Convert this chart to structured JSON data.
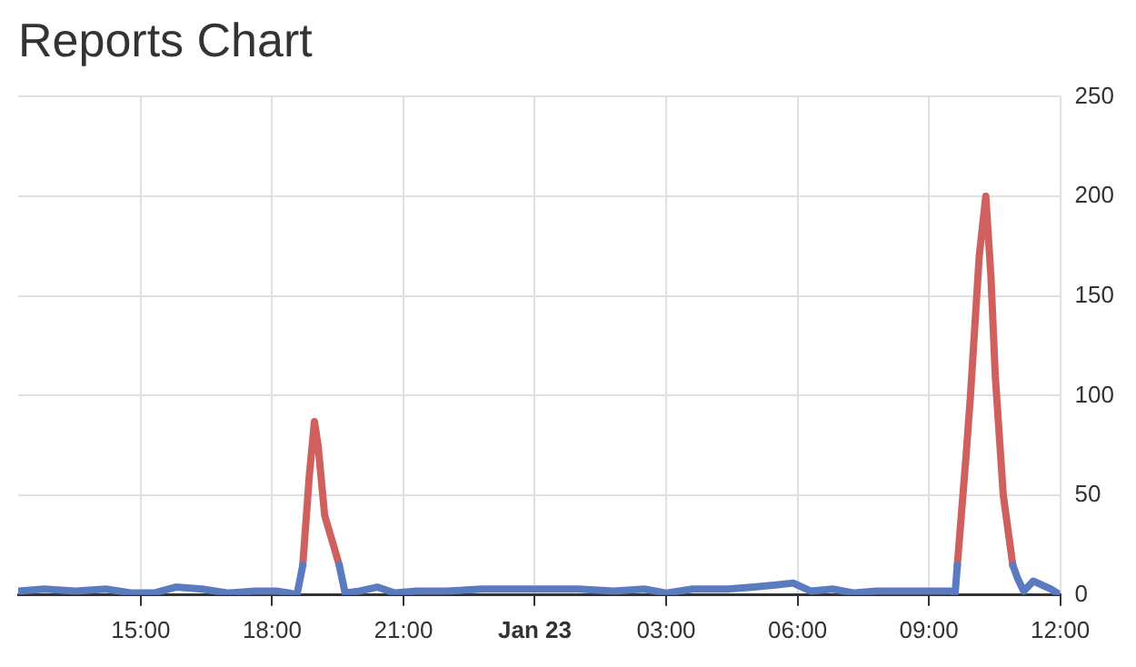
{
  "chart_data": {
    "type": "line",
    "title": "Reports Chart",
    "xlim": [
      "--01-22T12:12",
      "--01-23T12:00"
    ],
    "xticks": [
      {
        "value": "--01-22T15:00",
        "label": "15:00"
      },
      {
        "value": "--01-22T18:00",
        "label": "18:00"
      },
      {
        "value": "--01-22T21:00",
        "label": "21:00"
      },
      {
        "value": "--01-23T00:00",
        "label": "Jan 23"
      },
      {
        "value": "--01-23T03:00",
        "label": "03:00"
      },
      {
        "value": "--01-23T06:00",
        "label": "06:00"
      },
      {
        "value": "--01-23T09:00",
        "label": "09:00"
      },
      {
        "value": "--01-23T12:00",
        "label": "12:00"
      }
    ],
    "ylim": [
      0,
      250
    ],
    "yticks": [
      0,
      50,
      100,
      150,
      200,
      250
    ],
    "grid": true,
    "legend": false,
    "marker": "none",
    "line_style": "solid",
    "series": [
      {
        "color": "#5b7bc0",
        "x": [
          "--01-22T12:12",
          "--01-22T12:48",
          "--01-22T13:30",
          "--01-22T14:12",
          "--01-22T14:48",
          "--01-22T15:18",
          "--01-22T15:48",
          "--01-22T16:24",
          "--01-22T17:00",
          "--01-22T17:36",
          "--01-22T18:06",
          "--01-22T18:24",
          "--01-22T18:34",
          "--01-22T18:42",
          "--01-22T19:00",
          "--01-22T19:32",
          "--01-22T19:40",
          "--01-22T20:00",
          "--01-22T20:24",
          "--01-22T20:48",
          "--01-22T21:18",
          "--01-22T22:00",
          "--01-22T22:48",
          "--01-22T23:36",
          "--01-23T00:18",
          "--01-23T01:00",
          "--01-23T01:48",
          "--01-23T02:30",
          "--01-23T03:00",
          "--01-23T03:36",
          "--01-23T04:24",
          "--01-23T05:00",
          "--01-23T05:30",
          "--01-23T05:54",
          "--01-23T06:18",
          "--01-23T06:48",
          "--01-23T07:18",
          "--01-23T07:48",
          "--01-23T08:24",
          "--01-23T09:00",
          "--01-23T09:30",
          "--01-23T09:36",
          "--01-23T09:39",
          "--01-23T10:18",
          "--01-23T10:55",
          "--01-23T11:02",
          "--01-23T11:10",
          "--01-23T11:23",
          "--01-23T11:47",
          "--01-23T12:00"
        ],
        "values": [
          2,
          3,
          2,
          3,
          1,
          1,
          4,
          3,
          1,
          2,
          2,
          1,
          0,
          15,
          null,
          15,
          1,
          2,
          4,
          1,
          2,
          2,
          3,
          3,
          3,
          3,
          2,
          3,
          1,
          3,
          3,
          4,
          5,
          6,
          2,
          3,
          1,
          2,
          2,
          2,
          2,
          1,
          15,
          null,
          15,
          8,
          2,
          7,
          3,
          0
        ]
      },
      {
        "color": "#d0605e",
        "x": [
          "--01-22T18:42",
          "--01-22T18:51",
          "--01-22T18:58",
          "--01-22T19:03",
          "--01-22T19:12",
          "--01-22T19:24",
          "--01-22T19:32",
          "--01-22T19:36",
          "--01-23T09:39",
          "--01-23T09:51",
          "--01-23T09:57",
          "--01-23T10:09",
          "--01-23T10:18",
          "--01-23T10:25",
          "--01-23T10:31",
          "--01-23T10:42",
          "--01-23T10:55"
        ],
        "values": [
          15,
          60,
          87,
          75,
          40,
          25,
          15,
          null,
          15,
          70,
          100,
          170,
          200,
          160,
          110,
          50,
          15
        ]
      }
    ]
  }
}
